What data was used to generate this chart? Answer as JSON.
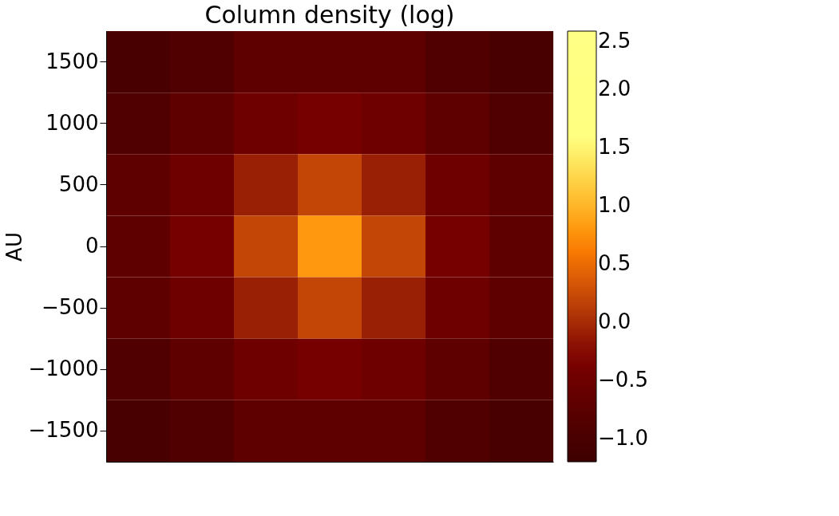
{
  "chart_data": {
    "type": "heatmap",
    "title": "Column density (log)",
    "ylabel": "AU",
    "tick_labels": "y",
    "categories": [
      null,
      null,
      null,
      null,
      null,
      null,
      null
    ],
    "y_categories": [
      "1500",
      "1000",
      "500",
      "0",
      "−500",
      "−1000",
      "−1500"
    ],
    "clim": [
      -1.2,
      2.5
    ],
    "cticks": [
      {
        "value": -1,
        "label": "−1.0"
      },
      -0.5,
      {
        "value": 0,
        "label": "0.0"
      },
      0.5,
      {
        "value": 1,
        "label": "1.0"
      },
      1.5,
      {
        "value": 2,
        "label": "2.0"
      },
      2.5
    ],
    "cells": [
      [
        -1.0,
        -0.9,
        -0.7,
        -0.7,
        -0.7,
        -0.9,
        -1.0
      ],
      [
        -0.9,
        -0.7,
        -0.5,
        -0.4,
        -0.5,
        -0.7,
        -0.9
      ],
      [
        -0.7,
        -0.5,
        -0.1,
        0.2,
        -0.1,
        -0.5,
        -0.7
      ],
      [
        -0.7,
        -0.4,
        0.2,
        0.8,
        0.2,
        -0.4,
        -0.7
      ],
      [
        -0.7,
        -0.5,
        -0.1,
        0.2,
        -0.1,
        -0.5,
        -0.7
      ],
      [
        -0.9,
        -0.7,
        -0.5,
        -0.4,
        -0.5,
        -0.7,
        -0.9
      ],
      [
        -1.0,
        -0.9,
        -0.7,
        -0.7,
        -0.7,
        -0.9,
        -1.0
      ]
    ]
  }
}
